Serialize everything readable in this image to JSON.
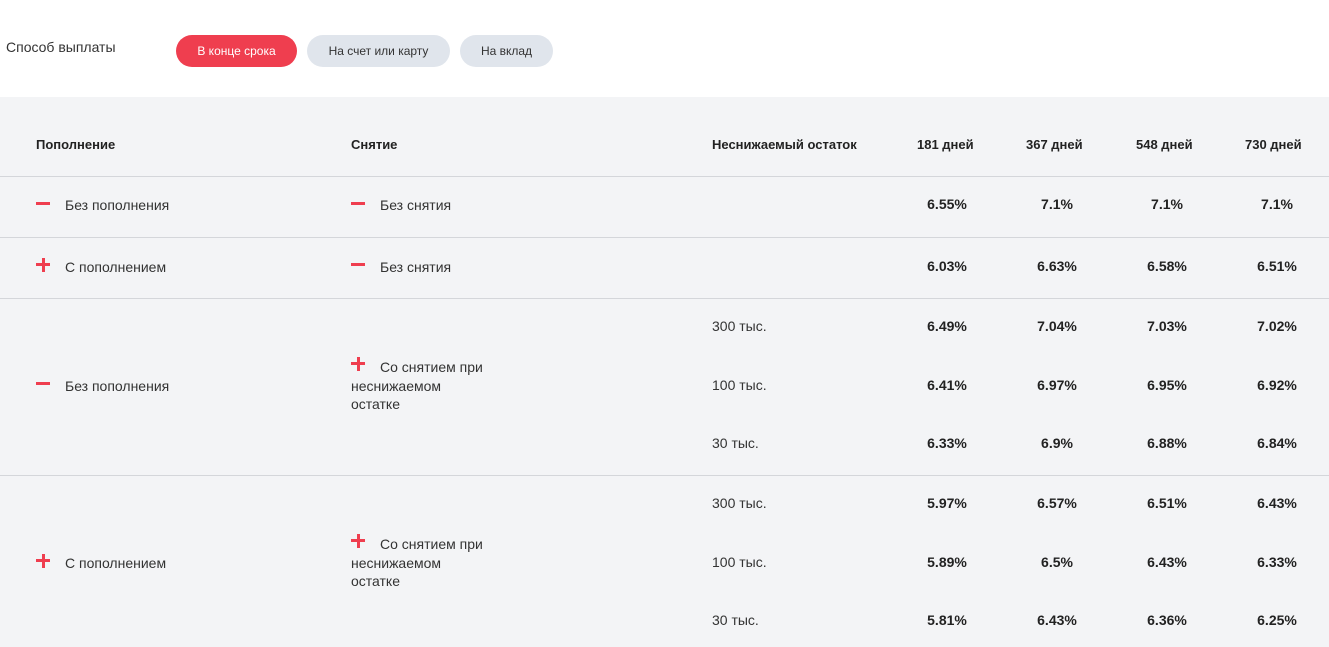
{
  "payout": {
    "label": "Способ выплаты",
    "options": [
      "В конце срока",
      "На счет или карту",
      "На вклад"
    ],
    "selected": "В конце срока"
  },
  "colors": {
    "accent": "#ef3e4f",
    "pill_inactive": "#e0e5ec",
    "table_bg": "#f3f4f6"
  },
  "table": {
    "headers": {
      "replenish": "Пополнение",
      "withdraw": "Снятие",
      "min_balance": "Неснижаемый остаток",
      "d181": "181 дней",
      "d367": "367 дней",
      "d548": "548 дней",
      "d730": "730 дней"
    },
    "rows": [
      {
        "replenish": {
          "icon": "minus-icon",
          "label": "Без пополнения"
        },
        "withdraw": {
          "icon": "minus-icon",
          "label": "Без снятия"
        },
        "sub": [
          {
            "min_balance": "",
            "rates": [
              "6.55%",
              "7.1%",
              "7.1%",
              "7.1%"
            ]
          }
        ]
      },
      {
        "replenish": {
          "icon": "plus-icon",
          "label": "С пополнением"
        },
        "withdraw": {
          "icon": "minus-icon",
          "label": "Без снятия"
        },
        "sub": [
          {
            "min_balance": "",
            "rates": [
              "6.03%",
              "6.63%",
              "6.58%",
              "6.51%"
            ]
          }
        ]
      },
      {
        "replenish": {
          "icon": "minus-icon",
          "label": "Без пополнения"
        },
        "withdraw": {
          "icon": "plus-icon",
          "label": "Со снятием при неснижаемом остатке"
        },
        "sub": [
          {
            "min_balance": "300 тыс.",
            "rates": [
              "6.49%",
              "7.04%",
              "7.03%",
              "7.02%"
            ]
          },
          {
            "min_balance": "100 тыс.",
            "rates": [
              "6.41%",
              "6.97%",
              "6.95%",
              "6.92%"
            ]
          },
          {
            "min_balance": "30 тыс.",
            "rates": [
              "6.33%",
              "6.9%",
              "6.88%",
              "6.84%"
            ]
          }
        ]
      },
      {
        "replenish": {
          "icon": "plus-icon",
          "label": "С пополнением"
        },
        "withdraw": {
          "icon": "plus-icon",
          "label": "Со снятием при неснижаемом остатке"
        },
        "sub": [
          {
            "min_balance": "300 тыс.",
            "rates": [
              "5.97%",
              "6.57%",
              "6.51%",
              "6.43%"
            ]
          },
          {
            "min_balance": "100 тыс.",
            "rates": [
              "5.89%",
              "6.5%",
              "6.43%",
              "6.33%"
            ]
          },
          {
            "min_balance": "30 тыс.",
            "rates": [
              "5.81%",
              "6.43%",
              "6.36%",
              "6.25%"
            ]
          }
        ]
      }
    ]
  }
}
